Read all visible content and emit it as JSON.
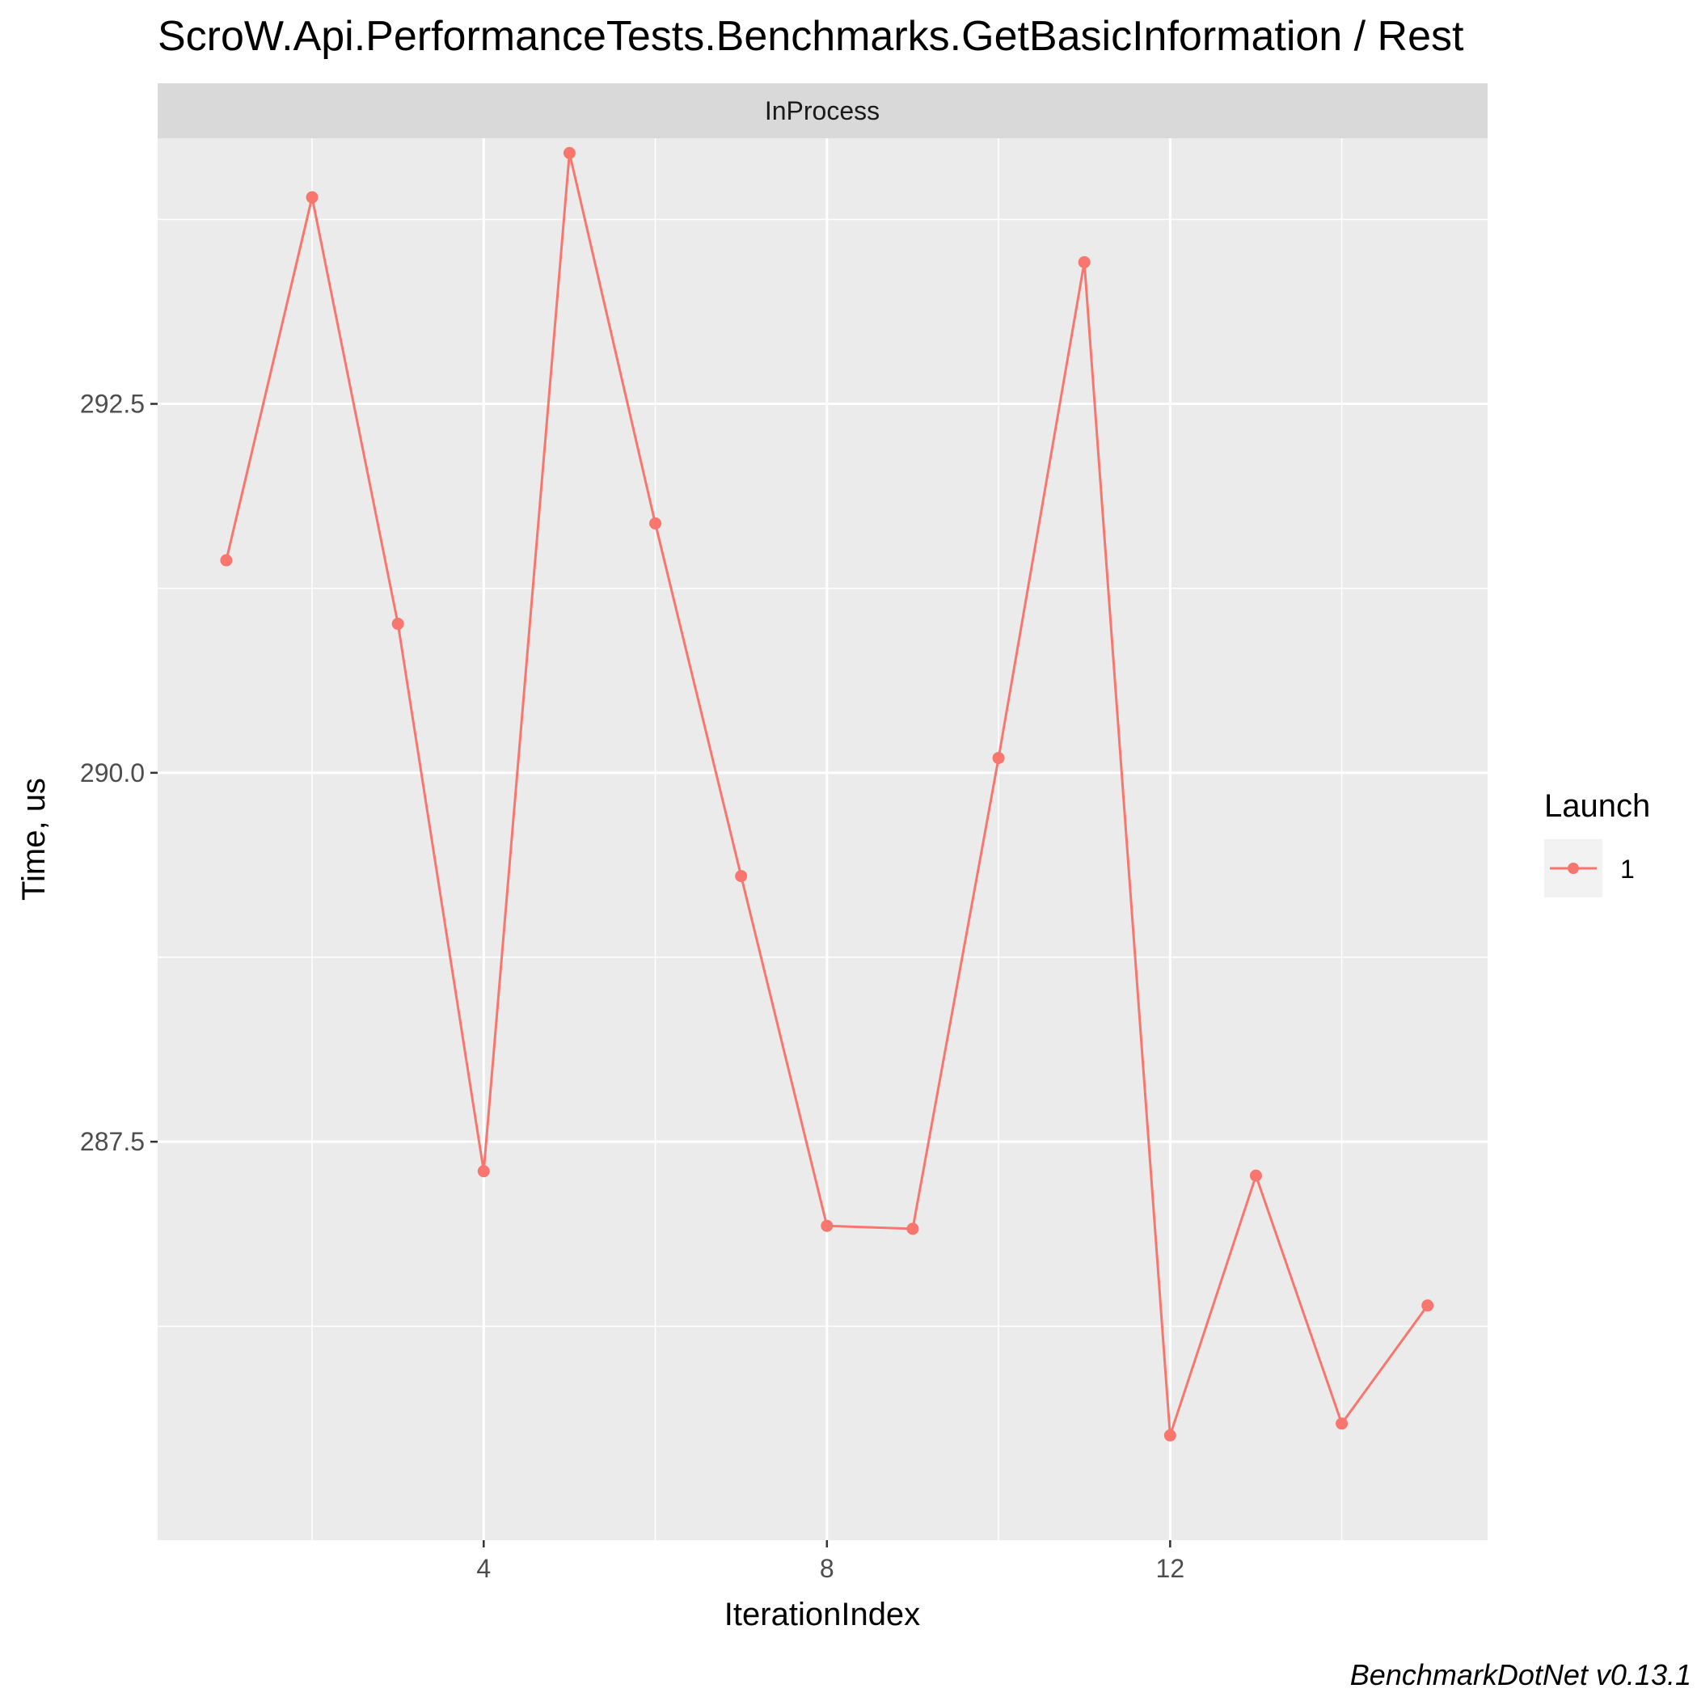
{
  "chart_data": {
    "type": "line",
    "title": "ScroW.Api.PerformanceTests.Benchmarks.GetBasicInformation / Rest",
    "facet": "InProcess",
    "xlabel": "IterationIndex",
    "ylabel": "Time, us",
    "caption": "BenchmarkDotNet v0.13.1",
    "x_ticks": [
      4,
      8,
      12
    ],
    "y_ticks": [
      287.5,
      290.0,
      292.5
    ],
    "y_tick_labels": [
      "287.5",
      "290.0",
      "292.5"
    ],
    "xlim": [
      0.2,
      15.7
    ],
    "ylim": [
      284.8,
      294.3
    ],
    "grid": true,
    "legend": {
      "title": "Launch",
      "position": "right",
      "entries": [
        "1"
      ]
    },
    "colors": {
      "series": "#f8766d",
      "panel": "#ebebeb",
      "strip": "#d9d9d9",
      "grid": "#ffffff"
    },
    "series": [
      {
        "name": "1",
        "x": [
          1,
          2,
          3,
          4,
          5,
          6,
          7,
          8,
          9,
          10,
          11,
          12,
          13,
          14,
          15
        ],
        "y": [
          291.44,
          293.9,
          291.01,
          287.3,
          294.2,
          291.69,
          289.3,
          286.93,
          286.91,
          290.1,
          293.46,
          285.51,
          287.27,
          285.59,
          286.39
        ]
      }
    ]
  }
}
